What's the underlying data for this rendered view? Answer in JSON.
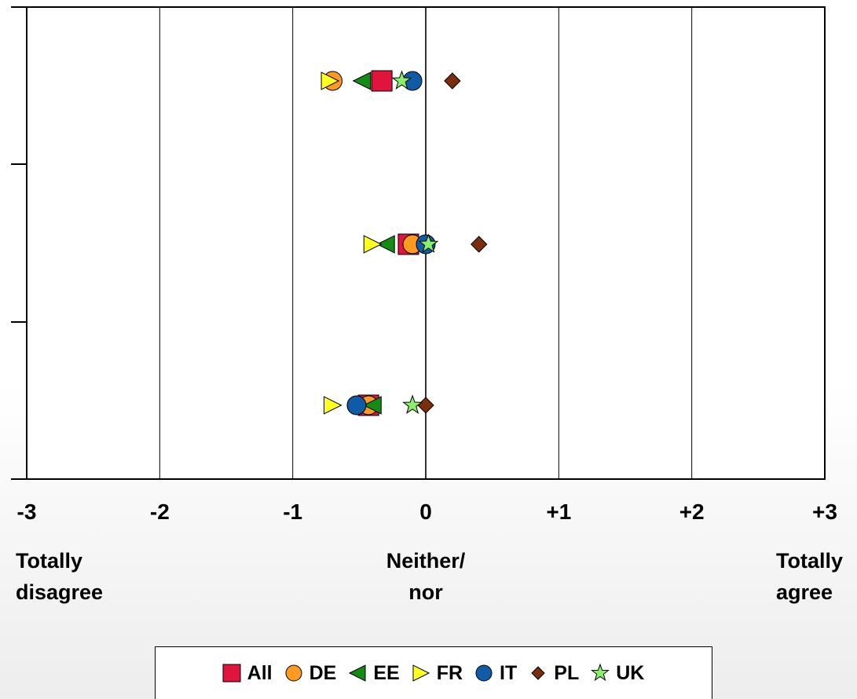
{
  "chart_data": {
    "type": "scatter",
    "title": "",
    "xlabel": "",
    "ylabel": "",
    "xlim": [
      -3,
      3
    ],
    "grid": "vertical",
    "x_ticks": [
      "-3",
      "-2",
      "-1",
      "0",
      "+1",
      "+2",
      "+3"
    ],
    "x_tick_values": [
      -3,
      -2,
      -1,
      0,
      1,
      2,
      3
    ],
    "anchor_labels": [
      {
        "x": -3,
        "lines": [
          "Totally",
          "disagree"
        ]
      },
      {
        "x": 0,
        "lines": [
          "Neither/",
          "nor"
        ]
      },
      {
        "x": 3,
        "lines": [
          "Totally",
          "agree"
        ]
      }
    ],
    "legend_position": "bottom",
    "rows": [
      1,
      2,
      3
    ],
    "series": [
      {
        "name": "All",
        "marker": "square",
        "color": "#e0143c",
        "values": [
          -0.33,
          -0.13,
          -0.43
        ]
      },
      {
        "name": "DE",
        "marker": "circle",
        "color": "#ff9a20",
        "values": [
          -0.7,
          -0.1,
          -0.43
        ]
      },
      {
        "name": "EE",
        "marker": "triangle-left",
        "color": "#138c13",
        "values": [
          -0.48,
          -0.3,
          -0.4
        ]
      },
      {
        "name": "FR",
        "marker": "triangle-right",
        "color": "#ffff20",
        "values": [
          -0.72,
          -0.4,
          -0.7
        ]
      },
      {
        "name": "IT",
        "marker": "circle",
        "color": "#0f5ba8",
        "values": [
          -0.1,
          0.0,
          -0.52
        ]
      },
      {
        "name": "PL",
        "marker": "diamond",
        "color": "#7a2e0c",
        "values": [
          0.2,
          0.4,
          0.0
        ]
      },
      {
        "name": "UK",
        "marker": "star",
        "color": "#88f06a",
        "values": [
          -0.18,
          0.02,
          -0.1
        ]
      }
    ]
  }
}
